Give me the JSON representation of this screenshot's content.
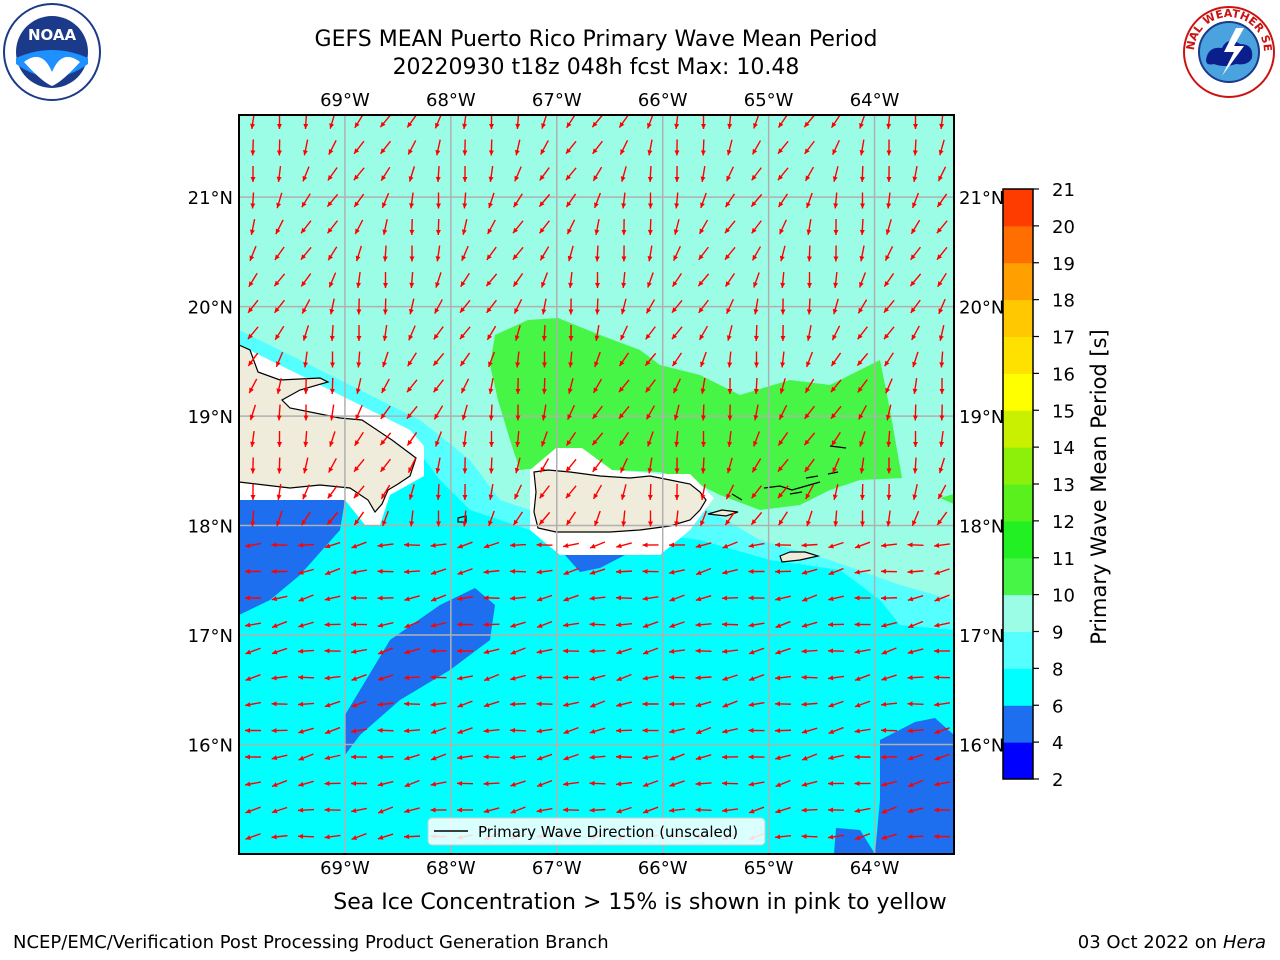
{
  "title": {
    "line1": "GEFS MEAN Puerto Rico Primary Wave Mean Period",
    "line2": "20220930 t18z 048h fcst   Max: 10.48"
  },
  "logos": {
    "left": "noaa-logo",
    "right": "national-weather-service-logo",
    "left_text": "NOAA",
    "right_text": "NATIONAL WEATHER SERVICE"
  },
  "map": {
    "lon_range": [
      -70.0,
      -63.25
    ],
    "lat_range": [
      15.0,
      21.75
    ],
    "lon_ticks": [
      "69°W",
      "68°W",
      "67°W",
      "66°W",
      "65°W",
      "64°W"
    ],
    "lon_values": [
      -69,
      -68,
      -67,
      -66,
      -65,
      -64
    ],
    "lat_ticks": [
      "16°N",
      "17°N",
      "18°N",
      "19°N",
      "20°N",
      "21°N"
    ],
    "lat_values": [
      16,
      17,
      18,
      19,
      20,
      21
    ],
    "grid": true,
    "vector_color": "#ff0000",
    "legend": {
      "label": "Primary Wave Direction (unscaled)",
      "placement": "bottom-center"
    }
  },
  "colorbar": {
    "label": "Primary Wave Mean Period [s]",
    "ticks": [
      "2",
      "4",
      "6",
      "8",
      "9",
      "10",
      "11",
      "12",
      "13",
      "14",
      "15",
      "16",
      "17",
      "18",
      "19",
      "20",
      "21"
    ],
    "levels": [
      2,
      4,
      6,
      8,
      9,
      10,
      11,
      12,
      13,
      14,
      15,
      16,
      17,
      18,
      19,
      20,
      21
    ],
    "colors": [
      "#0000ff",
      "#1e6ef0",
      "#00ffff",
      "#55ffff",
      "#9bfde6",
      "#46f546",
      "#22f022",
      "#5af01e",
      "#8cf00a",
      "#c8f000",
      "#ffff00",
      "#ffe100",
      "#ffc800",
      "#ffa000",
      "#ff6e00",
      "#ff3c00",
      "#ff0000"
    ]
  },
  "field_colors": {
    "p4_6": "#1e6ef0",
    "p6_8": "#00ffff",
    "p8_9": "#55ffff",
    "p9_10": "#9bfde6",
    "p10_11": "#46f546",
    "land": "#efecdc",
    "ice": "#ffffff"
  },
  "notes": {
    "sea_ice": "Sea Ice Concentration > 15% is shown in pink to yellow",
    "footer_left": "NCEP/EMC/Verification Post Processing Product Generation Branch",
    "footer_date": "03 Oct 2022 on ",
    "footer_host": "Hera"
  }
}
